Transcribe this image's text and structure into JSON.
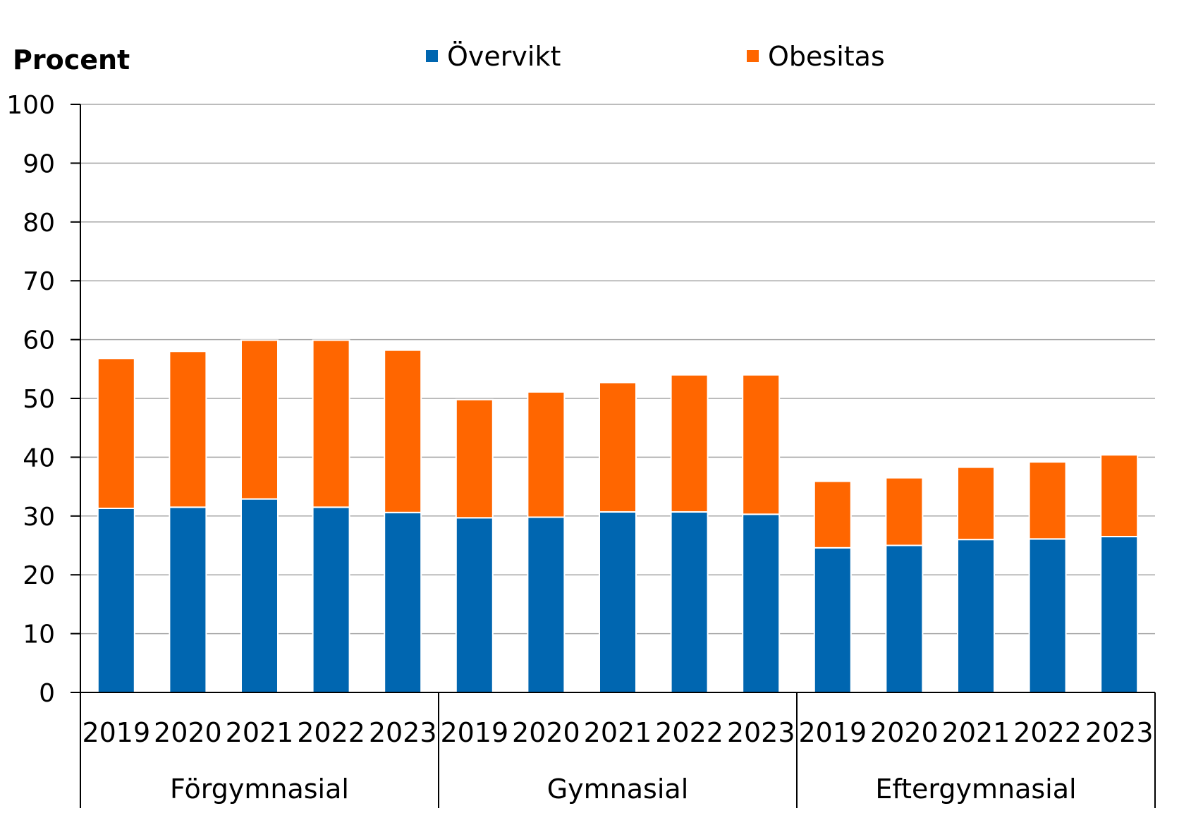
{
  "chart_data": {
    "type": "bar",
    "stacked": true,
    "title": "",
    "ylabel": "Procent",
    "xlabel": "",
    "ylim": [
      0,
      100
    ],
    "yticks": [
      0,
      10,
      20,
      30,
      40,
      50,
      60,
      70,
      80,
      90,
      100
    ],
    "grid": true,
    "legend_position": "top",
    "groups": [
      {
        "label": "Förgymnasial",
        "categories": [
          "2019",
          "2020",
          "2021",
          "2022",
          "2023"
        ]
      },
      {
        "label": "Gymnasial",
        "categories": [
          "2019",
          "2020",
          "2021",
          "2022",
          "2023"
        ]
      },
      {
        "label": "Eftergymnasial",
        "categories": [
          "2019",
          "2020",
          "2021",
          "2022",
          "2023"
        ]
      }
    ],
    "series": [
      {
        "name": "Övervikt",
        "color": "#0066b0",
        "values": [
          31.3,
          31.5,
          32.9,
          31.5,
          30.6,
          29.7,
          29.8,
          30.7,
          30.7,
          30.3,
          24.6,
          25.0,
          26.0,
          26.1,
          26.5
        ]
      },
      {
        "name": "Obesitas",
        "color": "#ff6600",
        "values": [
          25.5,
          26.5,
          27.0,
          28.4,
          27.6,
          20.1,
          21.3,
          22.0,
          23.3,
          23.7,
          11.3,
          11.5,
          12.3,
          13.1,
          13.9
        ]
      }
    ]
  }
}
